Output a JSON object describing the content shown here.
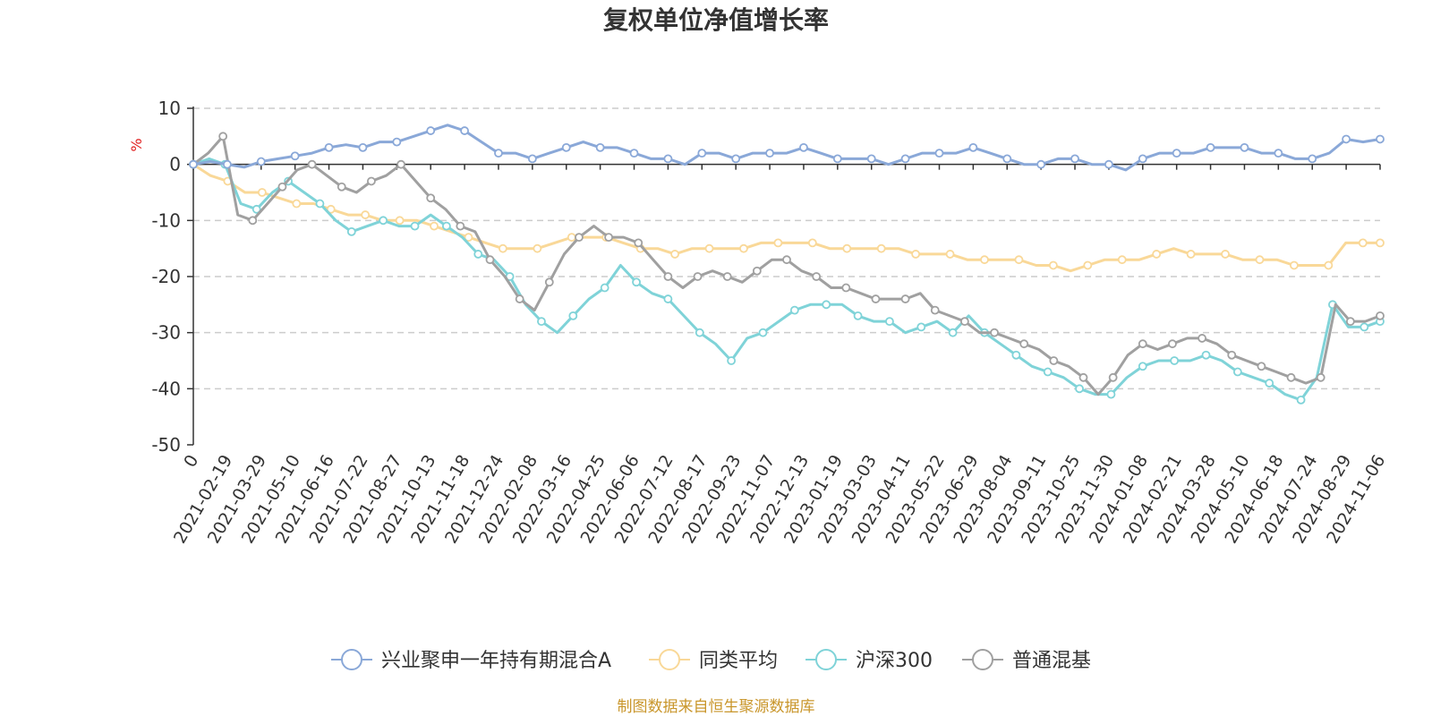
{
  "chart_data": {
    "type": "line",
    "title": "复权单位净值增长率",
    "ylabel": "%",
    "ylim": [
      -50,
      10
    ],
    "yticks": [
      10,
      0,
      -10,
      -20,
      -30,
      -40,
      -50
    ],
    "x_origin_label": "0",
    "xticks": [
      "2021-02-19",
      "2021-03-29",
      "2021-05-10",
      "2021-06-16",
      "2021-07-22",
      "2021-08-27",
      "2021-10-13",
      "2021-11-18",
      "2021-12-24",
      "2022-02-08",
      "2022-03-16",
      "2022-04-25",
      "2022-06-06",
      "2022-07-12",
      "2022-08-17",
      "2022-09-23",
      "2022-11-07",
      "2022-12-13",
      "2023-01-19",
      "2023-03-03",
      "2023-04-11",
      "2023-05-22",
      "2023-06-29",
      "2023-08-04",
      "2023-09-11",
      "2023-10-25",
      "2023-11-30",
      "2024-01-08",
      "2024-02-21",
      "2024-03-28",
      "2024-05-10",
      "2024-06-18",
      "2024-07-24",
      "2024-08-29",
      "2024-11-06"
    ],
    "grid": true,
    "legend_position": "bottom",
    "series": [
      {
        "name": "兴业聚申一年持有期混合A",
        "color": "#8aa8d8",
        "values": [
          0,
          0.5,
          0,
          -0.5,
          0.5,
          1,
          1.5,
          2,
          3,
          3.5,
          3,
          4,
          4,
          5,
          6,
          7,
          6,
          4,
          2,
          2,
          1,
          2,
          3,
          4,
          3,
          3,
          2,
          1,
          1,
          0,
          2,
          2,
          1,
          2,
          2,
          2,
          3,
          2,
          1,
          1,
          1,
          0,
          1,
          2,
          2,
          2,
          3,
          2,
          1,
          0,
          0,
          1,
          1,
          0,
          0,
          -1,
          1,
          2,
          2,
          2,
          3,
          3,
          3,
          2,
          2,
          1,
          1,
          2,
          4.5,
          4,
          4.5
        ]
      },
      {
        "name": "同类平均",
        "color": "#f9d898",
        "values": [
          0,
          -2,
          -3,
          -5,
          -5,
          -6,
          -7,
          -7,
          -8,
          -9,
          -9,
          -10,
          -10,
          -10,
          -11,
          -12,
          -13,
          -14,
          -15,
          -15,
          -15,
          -14,
          -13,
          -13,
          -13,
          -14,
          -15,
          -15,
          -16,
          -15,
          -15,
          -15,
          -15,
          -14,
          -14,
          -14,
          -14,
          -15,
          -15,
          -15,
          -15,
          -15,
          -16,
          -16,
          -16,
          -17,
          -17,
          -17,
          -17,
          -18,
          -18,
          -19,
          -18,
          -17,
          -17,
          -17,
          -16,
          -15,
          -16,
          -16,
          -16,
          -17,
          -17,
          -17,
          -18,
          -18,
          -18,
          -14,
          -14,
          -14
        ]
      },
      {
        "name": "沪深300",
        "color": "#7fd3d8",
        "values": [
          0,
          1,
          0,
          -7,
          -8,
          -5,
          -3,
          -5,
          -7,
          -10,
          -12,
          -11,
          -10,
          -11,
          -11,
          -9,
          -11,
          -13,
          -16,
          -17,
          -20,
          -25,
          -28,
          -30,
          -27,
          -24,
          -22,
          -18,
          -21,
          -23,
          -24,
          -27,
          -30,
          -32,
          -35,
          -31,
          -30,
          -28,
          -26,
          -25,
          -25,
          -25,
          -27,
          -28,
          -28,
          -30,
          -29,
          -28,
          -30,
          -27,
          -30,
          -32,
          -34,
          -36,
          -37,
          -38,
          -40,
          -41,
          -41,
          -38,
          -36,
          -35,
          -35,
          -35,
          -34,
          -35,
          -37,
          -38,
          -39,
          -41,
          -42,
          -38,
          -25,
          -29,
          -29,
          -28
        ]
      },
      {
        "name": "普通混基",
        "color": "#a0a0a0",
        "values": [
          0,
          2,
          5,
          -9,
          -10,
          -7,
          -4,
          -1,
          0,
          -2,
          -4,
          -5,
          -3,
          -2,
          0,
          -3,
          -6,
          -8,
          -11,
          -12,
          -17,
          -20,
          -24,
          -26,
          -21,
          -16,
          -13,
          -11,
          -13,
          -13,
          -14,
          -17,
          -20,
          -22,
          -20,
          -19,
          -20,
          -21,
          -19,
          -17,
          -17,
          -19,
          -20,
          -22,
          -22,
          -23,
          -24,
          -24,
          -24,
          -23,
          -26,
          -27,
          -28,
          -30,
          -30,
          -31,
          -32,
          -33,
          -35,
          -36,
          -38,
          -41,
          -38,
          -34,
          -32,
          -33,
          -32,
          -31,
          -31,
          -32,
          -34,
          -35,
          -36,
          -37,
          -38,
          -39,
          -38,
          -25,
          -28,
          -28,
          -27
        ]
      }
    ]
  },
  "footer": {
    "source": "制图数据来自恒生聚源数据库"
  }
}
